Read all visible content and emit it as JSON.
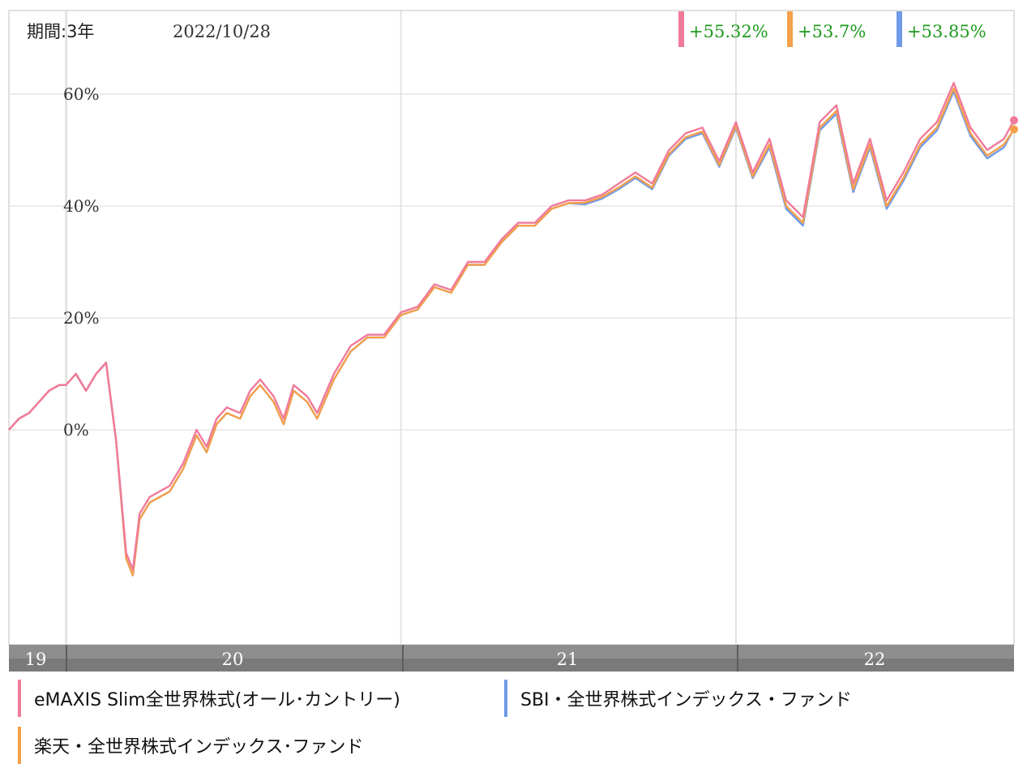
{
  "header": {
    "period_label": "期間:3年",
    "date_label": "2022/10/28"
  },
  "returns": [
    {
      "text": "+55.32%",
      "color": "#f07a9a"
    },
    {
      "text": "+53.7%",
      "color": "#f5a04a"
    },
    {
      "text": "+53.85%",
      "color": "#6f9ae8"
    }
  ],
  "legend": [
    {
      "name": "eMAXIS Slim全世界株式(オール･カントリー)",
      "color": "#f07a9a"
    },
    {
      "name": "SBI・全世界株式インデックス・ファンド",
      "color": "#6f9ae8"
    },
    {
      "name": "楽天・全世界株式インデックス･ファンド",
      "color": "#f5a04a"
    }
  ],
  "chart_data": {
    "type": "line",
    "title": "",
    "xlabel": "",
    "ylabel": "",
    "ylim": [
      -40,
      60
    ],
    "y_ticks": [
      {
        "value": 60,
        "label": "60%"
      },
      {
        "value": 40,
        "label": "40%"
      },
      {
        "value": 20,
        "label": "20%"
      },
      {
        "value": 0,
        "label": "0%"
      }
    ],
    "x_ticks": [
      {
        "value": 2019.83,
        "label": "19"
      },
      {
        "value": 2020.0,
        "label": "20"
      },
      {
        "value": 2021.0,
        "label": "21"
      },
      {
        "value": 2022.0,
        "label": "22"
      }
    ],
    "x_range": [
      2019.83,
      2022.83
    ],
    "grid": true,
    "legend_position": "bottom",
    "x": [
      2019.83,
      2019.86,
      2019.89,
      2019.92,
      2019.95,
      2019.98,
      2020.0,
      2020.03,
      2020.06,
      2020.09,
      2020.12,
      2020.15,
      2020.18,
      2020.2,
      2020.22,
      2020.25,
      2020.28,
      2020.31,
      2020.35,
      2020.39,
      2020.42,
      2020.45,
      2020.48,
      2020.52,
      2020.55,
      2020.58,
      2020.62,
      2020.65,
      2020.68,
      2020.72,
      2020.75,
      2020.8,
      2020.85,
      2020.9,
      2020.95,
      2021.0,
      2021.05,
      2021.1,
      2021.15,
      2021.2,
      2021.25,
      2021.3,
      2021.35,
      2021.4,
      2021.45,
      2021.5,
      2021.55,
      2021.6,
      2021.65,
      2021.7,
      2021.75,
      2021.8,
      2021.85,
      2021.9,
      2021.95,
      2022.0,
      2022.05,
      2022.1,
      2022.15,
      2022.2,
      2022.25,
      2022.3,
      2022.35,
      2022.4,
      2022.45,
      2022.5,
      2022.55,
      2022.6,
      2022.65,
      2022.7,
      2022.75,
      2022.8,
      2022.83
    ],
    "series": [
      {
        "name": "eMAXIS Slim全世界株式(オール･カントリー)",
        "color": "#f07a9a",
        "values": [
          0,
          2,
          3,
          5,
          7,
          8,
          8,
          10,
          7,
          10,
          12,
          -2,
          -22,
          -25,
          -15,
          -12,
          -11,
          -10,
          -6,
          0,
          -3,
          2,
          4,
          3,
          7,
          9,
          6,
          2,
          8,
          6,
          3,
          10,
          15,
          17,
          17,
          21,
          22,
          26,
          25,
          30,
          30,
          34,
          37,
          37,
          40,
          41,
          41,
          42,
          44,
          46,
          44,
          50,
          53,
          54,
          48,
          55,
          46,
          52,
          41,
          38,
          55,
          58,
          44,
          52,
          41,
          46,
          52,
          55,
          62,
          54,
          50,
          52,
          55.32
        ]
      },
      {
        "name": "SBI・全世界株式インデックス・ファンド",
        "color": "#6f9ae8",
        "values": [
          0,
          2,
          3,
          5,
          7,
          8,
          8,
          10,
          7,
          10,
          12,
          -2,
          -23,
          -26,
          -16,
          -13,
          -12,
          -11,
          -7,
          -1,
          -4,
          1,
          3,
          2,
          6,
          8,
          5,
          1,
          7,
          5,
          2,
          9,
          14,
          16.5,
          16.5,
          20.5,
          21.5,
          25.5,
          24.5,
          29.5,
          29.5,
          33.5,
          36.5,
          36.5,
          39.5,
          40.5,
          40.3,
          41.3,
          43,
          45,
          43,
          49,
          52,
          53,
          47,
          54,
          45,
          50.5,
          39.5,
          36.5,
          53.5,
          56.5,
          42.5,
          50.5,
          39.5,
          44.5,
          50.5,
          53.5,
          60.5,
          52.5,
          48.5,
          50.5,
          53.85
        ]
      },
      {
        "name": "楽天・全世界株式インデックス･ファンド",
        "color": "#f5a04a",
        "values": [
          0,
          2,
          3,
          5,
          7,
          8,
          8,
          10,
          7,
          10,
          12,
          -2,
          -23,
          -26,
          -16,
          -13,
          -12,
          -11,
          -7,
          -1,
          -4,
          1,
          3,
          2,
          6,
          8,
          5,
          1,
          7,
          5,
          2,
          9,
          14,
          16.5,
          16.5,
          20.5,
          21.5,
          25.5,
          24.5,
          29.5,
          29.5,
          33.5,
          36.5,
          36.5,
          39.5,
          40.5,
          40.6,
          41.6,
          43.3,
          45.3,
          43.3,
          49.3,
          52.3,
          53.3,
          47.3,
          54.3,
          45.3,
          51,
          40,
          37,
          54,
          57,
          43,
          51,
          40,
          45,
          51,
          54,
          61,
          53,
          49,
          51,
          53.7
        ]
      }
    ]
  }
}
